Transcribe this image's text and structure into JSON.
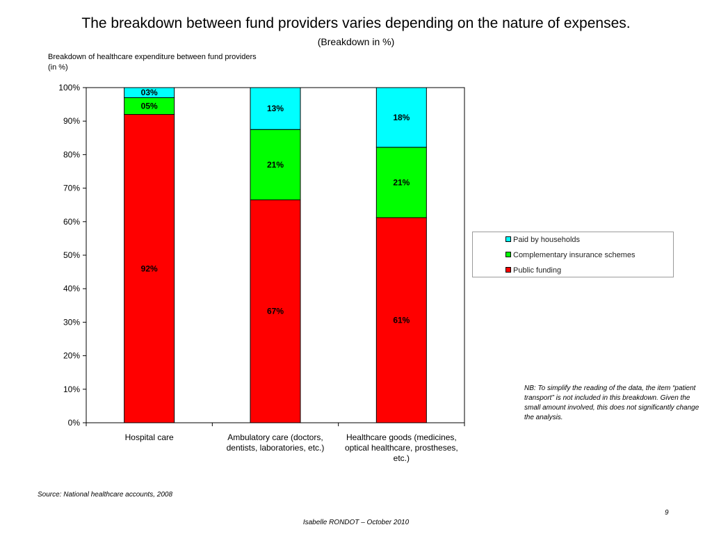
{
  "slide": {
    "title": "The breakdown between fund providers varies depending on the nature of expenses.",
    "subtitle": "(Breakdown in %)",
    "chart_caption_line1": "Breakdown of healthcare expenditure between fund providers",
    "chart_caption_line2": "(in %)",
    "note": "NB: To simplify the reading of the data, the item “patient transport” is not included in this breakdown. Given the small amount involved, this does not significantly change the analysis.",
    "source": "Source: National healthcare accounts, 2008",
    "page_number": "9",
    "footer": "Isabelle RONDOT – October 2010"
  },
  "chart_data": {
    "type": "bar",
    "stacked": true,
    "orientation": "vertical",
    "title": "",
    "xlabel": "",
    "ylabel": "",
    "ylim": [
      0,
      100
    ],
    "ytick_step": 10,
    "ytick_labels": [
      "0%",
      "10%",
      "20%",
      "30%",
      "40%",
      "50%",
      "60%",
      "70%",
      "80%",
      "90%",
      "100%"
    ],
    "grid": false,
    "legend_position": "right",
    "categories": [
      [
        "Hospital care"
      ],
      [
        "Ambulatory care (doctors,",
        "dentists, laboratories, etc.)"
      ],
      [
        "Healthcare goods (medicines,",
        "optical healthcare, prostheses,",
        "etc.)"
      ]
    ],
    "series": [
      {
        "name": "Public funding",
        "color": "#ff0000",
        "values": [
          92,
          66.5,
          61.2
        ],
        "labels": [
          "92%",
          "67%",
          "61%"
        ]
      },
      {
        "name": "Complementary insurance schemes",
        "color": "#00ff00",
        "values": [
          5,
          21,
          21
        ],
        "labels": [
          "05%",
          "21%",
          "21%"
        ]
      },
      {
        "name": "Paid by households",
        "color": "#00ffff",
        "values": [
          3,
          12.5,
          17.8
        ],
        "labels": [
          "03%",
          "13%",
          "18%"
        ]
      }
    ],
    "legend_order": [
      "Paid by households",
      "Complementary insurance schemes",
      "Public funding"
    ]
  }
}
